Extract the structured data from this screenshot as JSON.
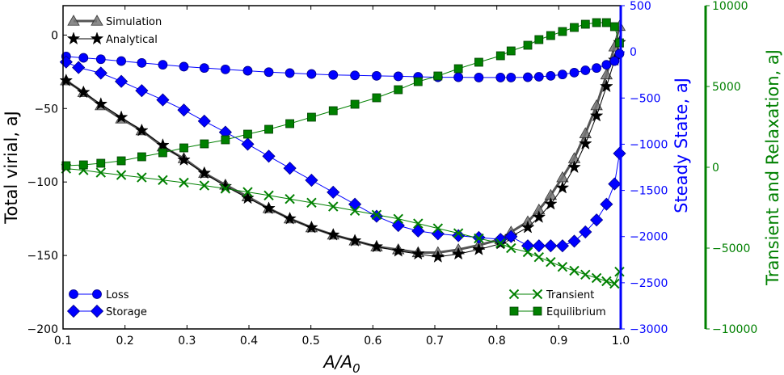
{
  "chart_data": {
    "type": "line",
    "x_axis": {
      "label": "A/A",
      "label_sub": "0",
      "lim": [
        0.1,
        1.0
      ],
      "ticks": [
        0.1,
        0.2,
        0.3,
        0.4,
        0.5,
        0.6,
        0.7,
        0.8,
        0.9,
        1.0
      ],
      "tick_labels": [
        "0.1",
        "0.2",
        "0.3",
        "0.4",
        "0.5",
        "0.6",
        "0.7",
        "0.8",
        "0.9",
        "1.0"
      ]
    },
    "y_axes": [
      {
        "id": "virial",
        "side": "left",
        "label": "Total virial, aJ",
        "color": "#000000",
        "lim": [
          -200,
          20
        ],
        "ticks": [
          0,
          -50,
          -100,
          -150,
          -200
        ],
        "tick_labels": [
          "0",
          "−50",
          "−100",
          "−150",
          "−200"
        ]
      },
      {
        "id": "steady",
        "side": "right",
        "label": "Steady State, aJ",
        "color": "#0000ff",
        "lim": [
          -3000,
          500
        ],
        "ticks": [
          500,
          0,
          -500,
          -1000,
          -1500,
          -2000,
          -2500,
          -3000
        ],
        "tick_labels": [
          "500",
          "0",
          "−500",
          "−1000",
          "−1500",
          "−2000",
          "−2500",
          "−3000"
        ]
      },
      {
        "id": "trans",
        "side": "right-outer",
        "label": "Transient and Relaxation, aJ",
        "color": "#008000",
        "lim": [
          -10000,
          10000
        ],
        "ticks": [
          10000,
          5000,
          0,
          -5000,
          -10000
        ],
        "tick_labels": [
          "10000",
          "5000",
          "0",
          "−5000",
          "−10000"
        ]
      }
    ],
    "x": [
      0.105,
      0.133,
      0.161,
      0.194,
      0.227,
      0.261,
      0.295,
      0.328,
      0.362,
      0.398,
      0.432,
      0.466,
      0.501,
      0.536,
      0.571,
      0.606,
      0.641,
      0.673,
      0.705,
      0.738,
      0.771,
      0.806,
      0.823,
      0.85,
      0.868,
      0.887,
      0.906,
      0.925,
      0.943,
      0.961,
      0.977,
      0.99,
      0.998
    ],
    "series": [
      {
        "name": "Simulation",
        "axis": "virial",
        "color": "#555555",
        "marker": "triangle",
        "x": [
          0.105,
          0.133,
          0.161,
          0.194,
          0.227,
          0.261,
          0.295,
          0.328,
          0.362,
          0.398,
          0.432,
          0.466,
          0.501,
          0.536,
          0.571,
          0.606,
          0.641,
          0.673,
          0.705,
          0.738,
          0.771,
          0.806,
          0.823,
          0.85,
          0.868,
          0.887,
          0.906,
          0.925,
          0.943,
          0.961,
          0.977,
          0.99,
          0.998
        ],
        "values": [
          -31,
          -39,
          -48,
          -57,
          -65,
          -76,
          -84,
          -94,
          -102,
          -110,
          -118,
          -125,
          -131,
          -136,
          -140,
          -144,
          -146,
          -148,
          -148,
          -146,
          -143,
          -139,
          -134,
          -127,
          -119,
          -109,
          -97,
          -84,
          -67,
          -48,
          -27,
          -8,
          6
        ]
      },
      {
        "name": "Analytical",
        "axis": "virial",
        "color": "#000000",
        "marker": "star",
        "x": [
          0.105,
          0.133,
          0.161,
          0.194,
          0.227,
          0.261,
          0.295,
          0.328,
          0.362,
          0.398,
          0.432,
          0.466,
          0.501,
          0.536,
          0.571,
          0.606,
          0.641,
          0.673,
          0.705,
          0.738,
          0.771,
          0.806,
          0.823,
          0.85,
          0.868,
          0.887,
          0.906,
          0.925,
          0.943,
          0.961,
          0.977,
          0.99,
          0.998
        ],
        "values": [
          -31,
          -39,
          -47,
          -56,
          -65,
          -75,
          -85,
          -94,
          -103,
          -111,
          -118,
          -125,
          -131,
          -136,
          -140,
          -144,
          -147,
          -149,
          -151,
          -149,
          -146,
          -142,
          -137,
          -131,
          -124,
          -115,
          -104,
          -90,
          -74,
          -55,
          -35,
          -17,
          -5
        ]
      },
      {
        "name": "Loss",
        "axis": "steady",
        "color": "#0000ff",
        "marker": "circle",
        "x": [
          0.105,
          0.133,
          0.161,
          0.194,
          0.227,
          0.261,
          0.295,
          0.328,
          0.362,
          0.398,
          0.432,
          0.466,
          0.501,
          0.536,
          0.571,
          0.606,
          0.641,
          0.673,
          0.705,
          0.738,
          0.771,
          0.806,
          0.823,
          0.85,
          0.868,
          0.887,
          0.906,
          0.925,
          0.943,
          0.961,
          0.977,
          0.99,
          0.998
        ],
        "values": [
          -50,
          -65,
          -80,
          -100,
          -120,
          -140,
          -160,
          -175,
          -190,
          -205,
          -220,
          -230,
          -240,
          -250,
          -255,
          -260,
          -265,
          -270,
          -275,
          -275,
          -278,
          -278,
          -278,
          -275,
          -270,
          -260,
          -245,
          -225,
          -200,
          -175,
          -140,
          -100,
          -20
        ]
      },
      {
        "name": "Storage",
        "axis": "steady",
        "color": "#0000ff",
        "marker": "diamond",
        "x": [
          0.105,
          0.125,
          0.161,
          0.194,
          0.227,
          0.261,
          0.295,
          0.328,
          0.362,
          0.398,
          0.432,
          0.466,
          0.501,
          0.536,
          0.571,
          0.606,
          0.641,
          0.673,
          0.705,
          0.738,
          0.771,
          0.806,
          0.823,
          0.85,
          0.868,
          0.887,
          0.906,
          0.925,
          0.943,
          0.961,
          0.977,
          0.99,
          0.998
        ],
        "values": [
          -110,
          -170,
          -230,
          -320,
          -420,
          -520,
          -630,
          -750,
          -870,
          -1000,
          -1130,
          -1260,
          -1390,
          -1520,
          -1650,
          -1780,
          -1880,
          -1940,
          -1970,
          -1990,
          -2010,
          -2030,
          -2000,
          -2100,
          -2100,
          -2100,
          -2100,
          -2050,
          -1950,
          -1820,
          -1650,
          -1430,
          -1100
        ]
      },
      {
        "name": "Transient",
        "axis": "trans",
        "color": "#008000",
        "marker": "x",
        "x": [
          0.105,
          0.133,
          0.161,
          0.194,
          0.227,
          0.261,
          0.295,
          0.328,
          0.362,
          0.398,
          0.432,
          0.466,
          0.501,
          0.536,
          0.571,
          0.606,
          0.641,
          0.673,
          0.705,
          0.738,
          0.771,
          0.806,
          0.823,
          0.85,
          0.868,
          0.887,
          0.906,
          0.925,
          0.943,
          0.961,
          0.977,
          0.99,
          0.998
        ],
        "values": [
          -80,
          -180,
          -330,
          -480,
          -630,
          -790,
          -950,
          -1130,
          -1320,
          -1530,
          -1740,
          -1960,
          -2190,
          -2430,
          -2690,
          -2940,
          -3190,
          -3480,
          -3780,
          -4080,
          -4400,
          -4700,
          -5000,
          -5250,
          -5560,
          -5860,
          -6160,
          -6400,
          -6640,
          -6850,
          -7050,
          -7200,
          -6460
        ]
      },
      {
        "name": "Equilibrium",
        "axis": "trans",
        "color": "#008000",
        "marker": "square",
        "x": [
          0.105,
          0.133,
          0.161,
          0.194,
          0.227,
          0.261,
          0.295,
          0.328,
          0.362,
          0.398,
          0.432,
          0.466,
          0.501,
          0.536,
          0.571,
          0.606,
          0.641,
          0.673,
          0.705,
          0.738,
          0.771,
          0.806,
          0.823,
          0.85,
          0.868,
          0.887,
          0.906,
          0.925,
          0.943,
          0.961,
          0.977,
          0.99,
          0.998
        ],
        "values": [
          100,
          150,
          250,
          400,
          650,
          900,
          1200,
          1450,
          1700,
          2050,
          2350,
          2700,
          3100,
          3500,
          3900,
          4300,
          4800,
          5300,
          5650,
          6100,
          6500,
          6900,
          7200,
          7550,
          7900,
          8150,
          8400,
          8650,
          8850,
          8950,
          8950,
          8700,
          7700
        ]
      }
    ],
    "legends": [
      {
        "position": "upper-left",
        "entries": [
          "Simulation",
          "Analytical"
        ]
      },
      {
        "position": "lower-left",
        "entries": [
          "Loss",
          "Storage"
        ]
      },
      {
        "position": "lower-right",
        "entries": [
          "Transient",
          "Equilibrium"
        ]
      }
    ]
  }
}
